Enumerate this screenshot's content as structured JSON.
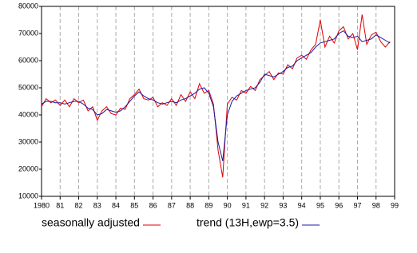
{
  "chart_data": {
    "type": "line",
    "x": [
      1980,
      1980.25,
      1980.5,
      1980.75,
      1981,
      1981.25,
      1981.5,
      1981.75,
      1982,
      1982.25,
      1982.5,
      1982.75,
      1983,
      1983.25,
      1983.5,
      1983.75,
      1984,
      1984.25,
      1984.5,
      1984.75,
      1985,
      1985.25,
      1985.5,
      1985.75,
      1986,
      1986.25,
      1986.5,
      1986.75,
      1987,
      1987.25,
      1987.5,
      1987.75,
      1988,
      1988.25,
      1988.5,
      1988.75,
      1989,
      1989.25,
      1989.5,
      1989.75,
      1990,
      1990.25,
      1990.5,
      1990.75,
      1991,
      1991.25,
      1991.5,
      1991.75,
      1992,
      1992.25,
      1992.5,
      1992.75,
      1993,
      1993.25,
      1993.5,
      1993.75,
      1994,
      1994.25,
      1994.5,
      1994.75,
      1995,
      1995.25,
      1995.5,
      1995.75,
      1996,
      1996.25,
      1996.5,
      1996.75,
      1997,
      1997.25,
      1997.5,
      1997.75,
      1998,
      1998.25,
      1998.5,
      1998.75
    ],
    "series": [
      {
        "name": "seasonally adjusted",
        "color": "#e00000",
        "values": [
          43000,
          46000,
          44500,
          45500,
          43500,
          45500,
          43000,
          46000,
          44500,
          45500,
          41500,
          43000,
          38000,
          41500,
          43000,
          40500,
          40000,
          42500,
          42000,
          46000,
          47500,
          49500,
          46000,
          45500,
          46500,
          43000,
          44500,
          43500,
          46000,
          43500,
          47500,
          45000,
          48500,
          46000,
          51500,
          48000,
          49000,
          44000,
          27000,
          17000,
          44000,
          46500,
          45500,
          49000,
          48000,
          50500,
          49000,
          53000,
          54500,
          56000,
          53000,
          55500,
          55000,
          58500,
          57000,
          61000,
          62000,
          60500,
          64000,
          66000,
          75000,
          65000,
          69000,
          66500,
          71000,
          72500,
          68000,
          70000,
          64000,
          77000,
          66000,
          69500,
          70500,
          67000,
          65000,
          67000
        ]
      },
      {
        "name": "trend (13H,ewp=3.5)",
        "color": "#1a1aa0",
        "values": [
          44000,
          45000,
          45000,
          44500,
          44500,
          44000,
          44500,
          45000,
          45000,
          44000,
          42500,
          42000,
          40000,
          40500,
          42000,
          41500,
          41000,
          41500,
          43000,
          45000,
          47000,
          48500,
          47000,
          46000,
          45500,
          44500,
          44000,
          44500,
          45000,
          44500,
          45500,
          46000,
          47000,
          48000,
          49500,
          50000,
          48000,
          43000,
          30000,
          23000,
          40000,
          45000,
          47000,
          48000,
          49000,
          49500,
          50000,
          52000,
          55000,
          54500,
          54000,
          55000,
          56000,
          57500,
          58000,
          60000,
          61000,
          62000,
          63000,
          65000,
          66500,
          67000,
          67500,
          68000,
          70000,
          71000,
          69000,
          68500,
          69000,
          67000,
          67500,
          68000,
          69500,
          68500,
          67500,
          66500
        ]
      }
    ],
    "xlim": [
      1980,
      1999
    ],
    "xticks": [
      1980,
      {
        "value": 1981,
        "label": "81"
      },
      {
        "value": 1982,
        "label": "82"
      },
      {
        "value": 1983,
        "label": "83"
      },
      {
        "value": 1984,
        "label": "84"
      },
      {
        "value": 1985,
        "label": "85"
      },
      {
        "value": 1986,
        "label": "86"
      },
      {
        "value": 1987,
        "label": "87"
      },
      {
        "value": 1988,
        "label": "88"
      },
      {
        "value": 1989,
        "label": "89"
      },
      {
        "value": 1990,
        "label": "90"
      },
      {
        "value": 1991,
        "label": "91"
      },
      {
        "value": 1992,
        "label": "92"
      },
      {
        "value": 1993,
        "label": "93"
      },
      {
        "value": 1994,
        "label": "94"
      },
      {
        "value": 1995,
        "label": "95"
      },
      {
        "value": 1996,
        "label": "96"
      },
      {
        "value": 1997,
        "label": "97"
      },
      {
        "value": 1998,
        "label": "98"
      },
      {
        "value": 1999,
        "label": "99"
      }
    ],
    "ylim": [
      10000,
      80000
    ],
    "yticks": [
      10000,
      20000,
      30000,
      40000,
      50000,
      60000,
      70000,
      80000
    ],
    "grid": true
  }
}
